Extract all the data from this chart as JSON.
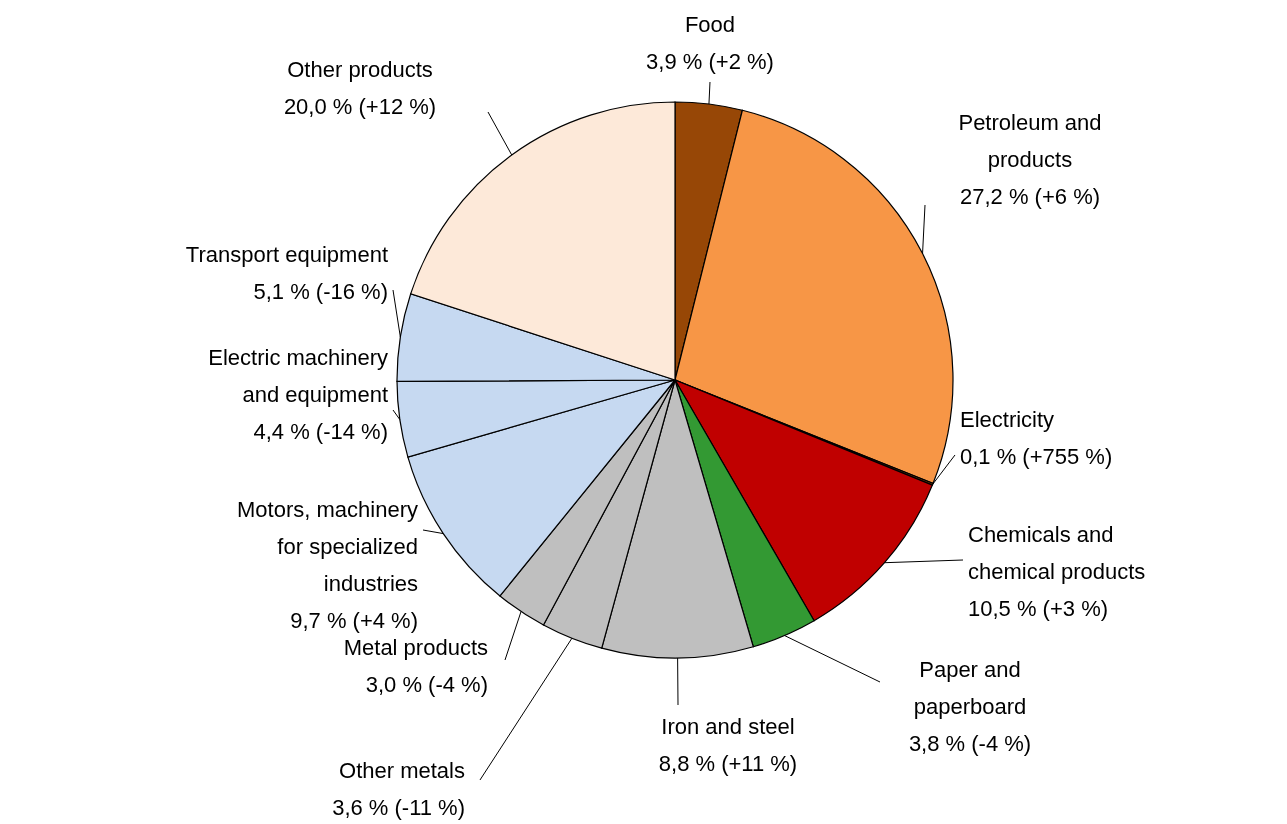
{
  "chart_data": {
    "type": "pie",
    "categories": [
      "Food",
      "Petroleum and products",
      "Electricity",
      "Chemicals and chemical products",
      "Paper and paperboard",
      "Iron and steel",
      "Other metals",
      "Metal products",
      "Motors, machinery for specialized industries",
      "Electric machinery and equipment",
      "Transport equipment",
      "Other products"
    ],
    "values": [
      3.9,
      27.2,
      0.1,
      10.5,
      3.8,
      8.8,
      3.6,
      3.0,
      9.7,
      4.4,
      5.1,
      20.0
    ],
    "value_labels": [
      "3,9 % (+2 %)",
      "27,2 % (+6 %)",
      "0,1 % (+755 %)",
      "10,5 % (+3 %)",
      "3,8 % (-4 %)",
      "8,8 % (+11 %)",
      "3,6 % (-11 %)",
      "3,0 % (-4 %)",
      "9,7 % (+4 %)",
      "4,4 % (-14 %)",
      "5,1 % (-16 %)",
      "20,0 % (+12 %)"
    ],
    "colors": [
      "#974706",
      "#f79646",
      "#984807",
      "#c00000",
      "#339933",
      "#bfbfbf",
      "#bfbfbf",
      "#bfbfbf",
      "#c6d9f1",
      "#c6d9f1",
      "#c6d9f1",
      "#fde9d9"
    ]
  }
}
